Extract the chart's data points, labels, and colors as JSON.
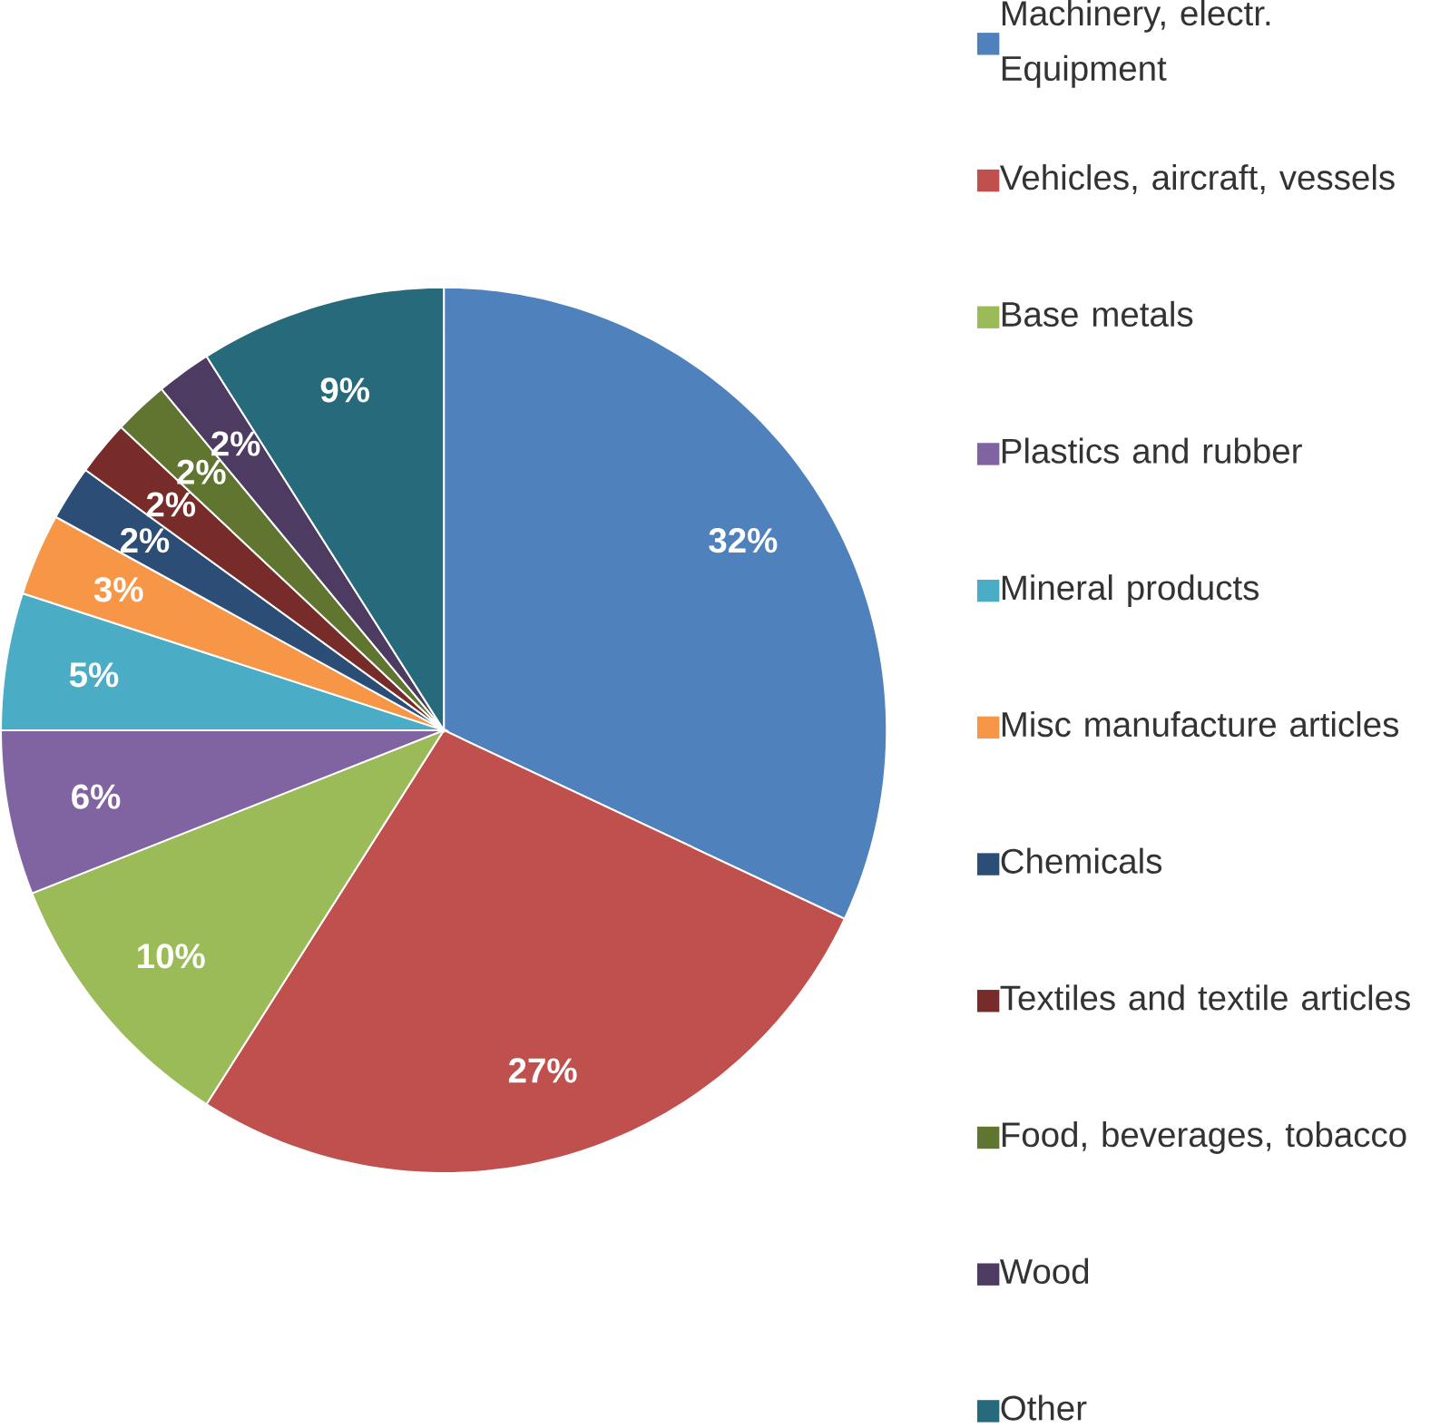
{
  "chart_data": {
    "type": "pie",
    "categories": [
      "Machinery, electr. Equipment",
      "Vehicles, aircraft, vessels",
      "Base metals",
      "Plastics and rubber",
      "Mineral products",
      "Misc manufacture articles",
      "Chemicals",
      "Textiles and textile articles",
      "Food, beverages, tobacco",
      "Wood",
      "Other"
    ],
    "values": [
      32,
      27,
      10,
      6,
      5,
      3,
      2,
      2,
      2,
      2,
      9
    ],
    "colors": [
      "#4f81bd",
      "#c0504d",
      "#9bbb59",
      "#8064a2",
      "#4bacc6",
      "#f79646",
      "#2c4d75",
      "#772c2a",
      "#5f7530",
      "#4d3b62",
      "#276a7c"
    ],
    "value_labels": [
      "32%",
      "27%",
      "10%",
      "6%",
      "5%",
      "3%",
      "2%",
      "2%",
      "2%",
      "2%",
      "9%"
    ],
    "legend": "right"
  }
}
